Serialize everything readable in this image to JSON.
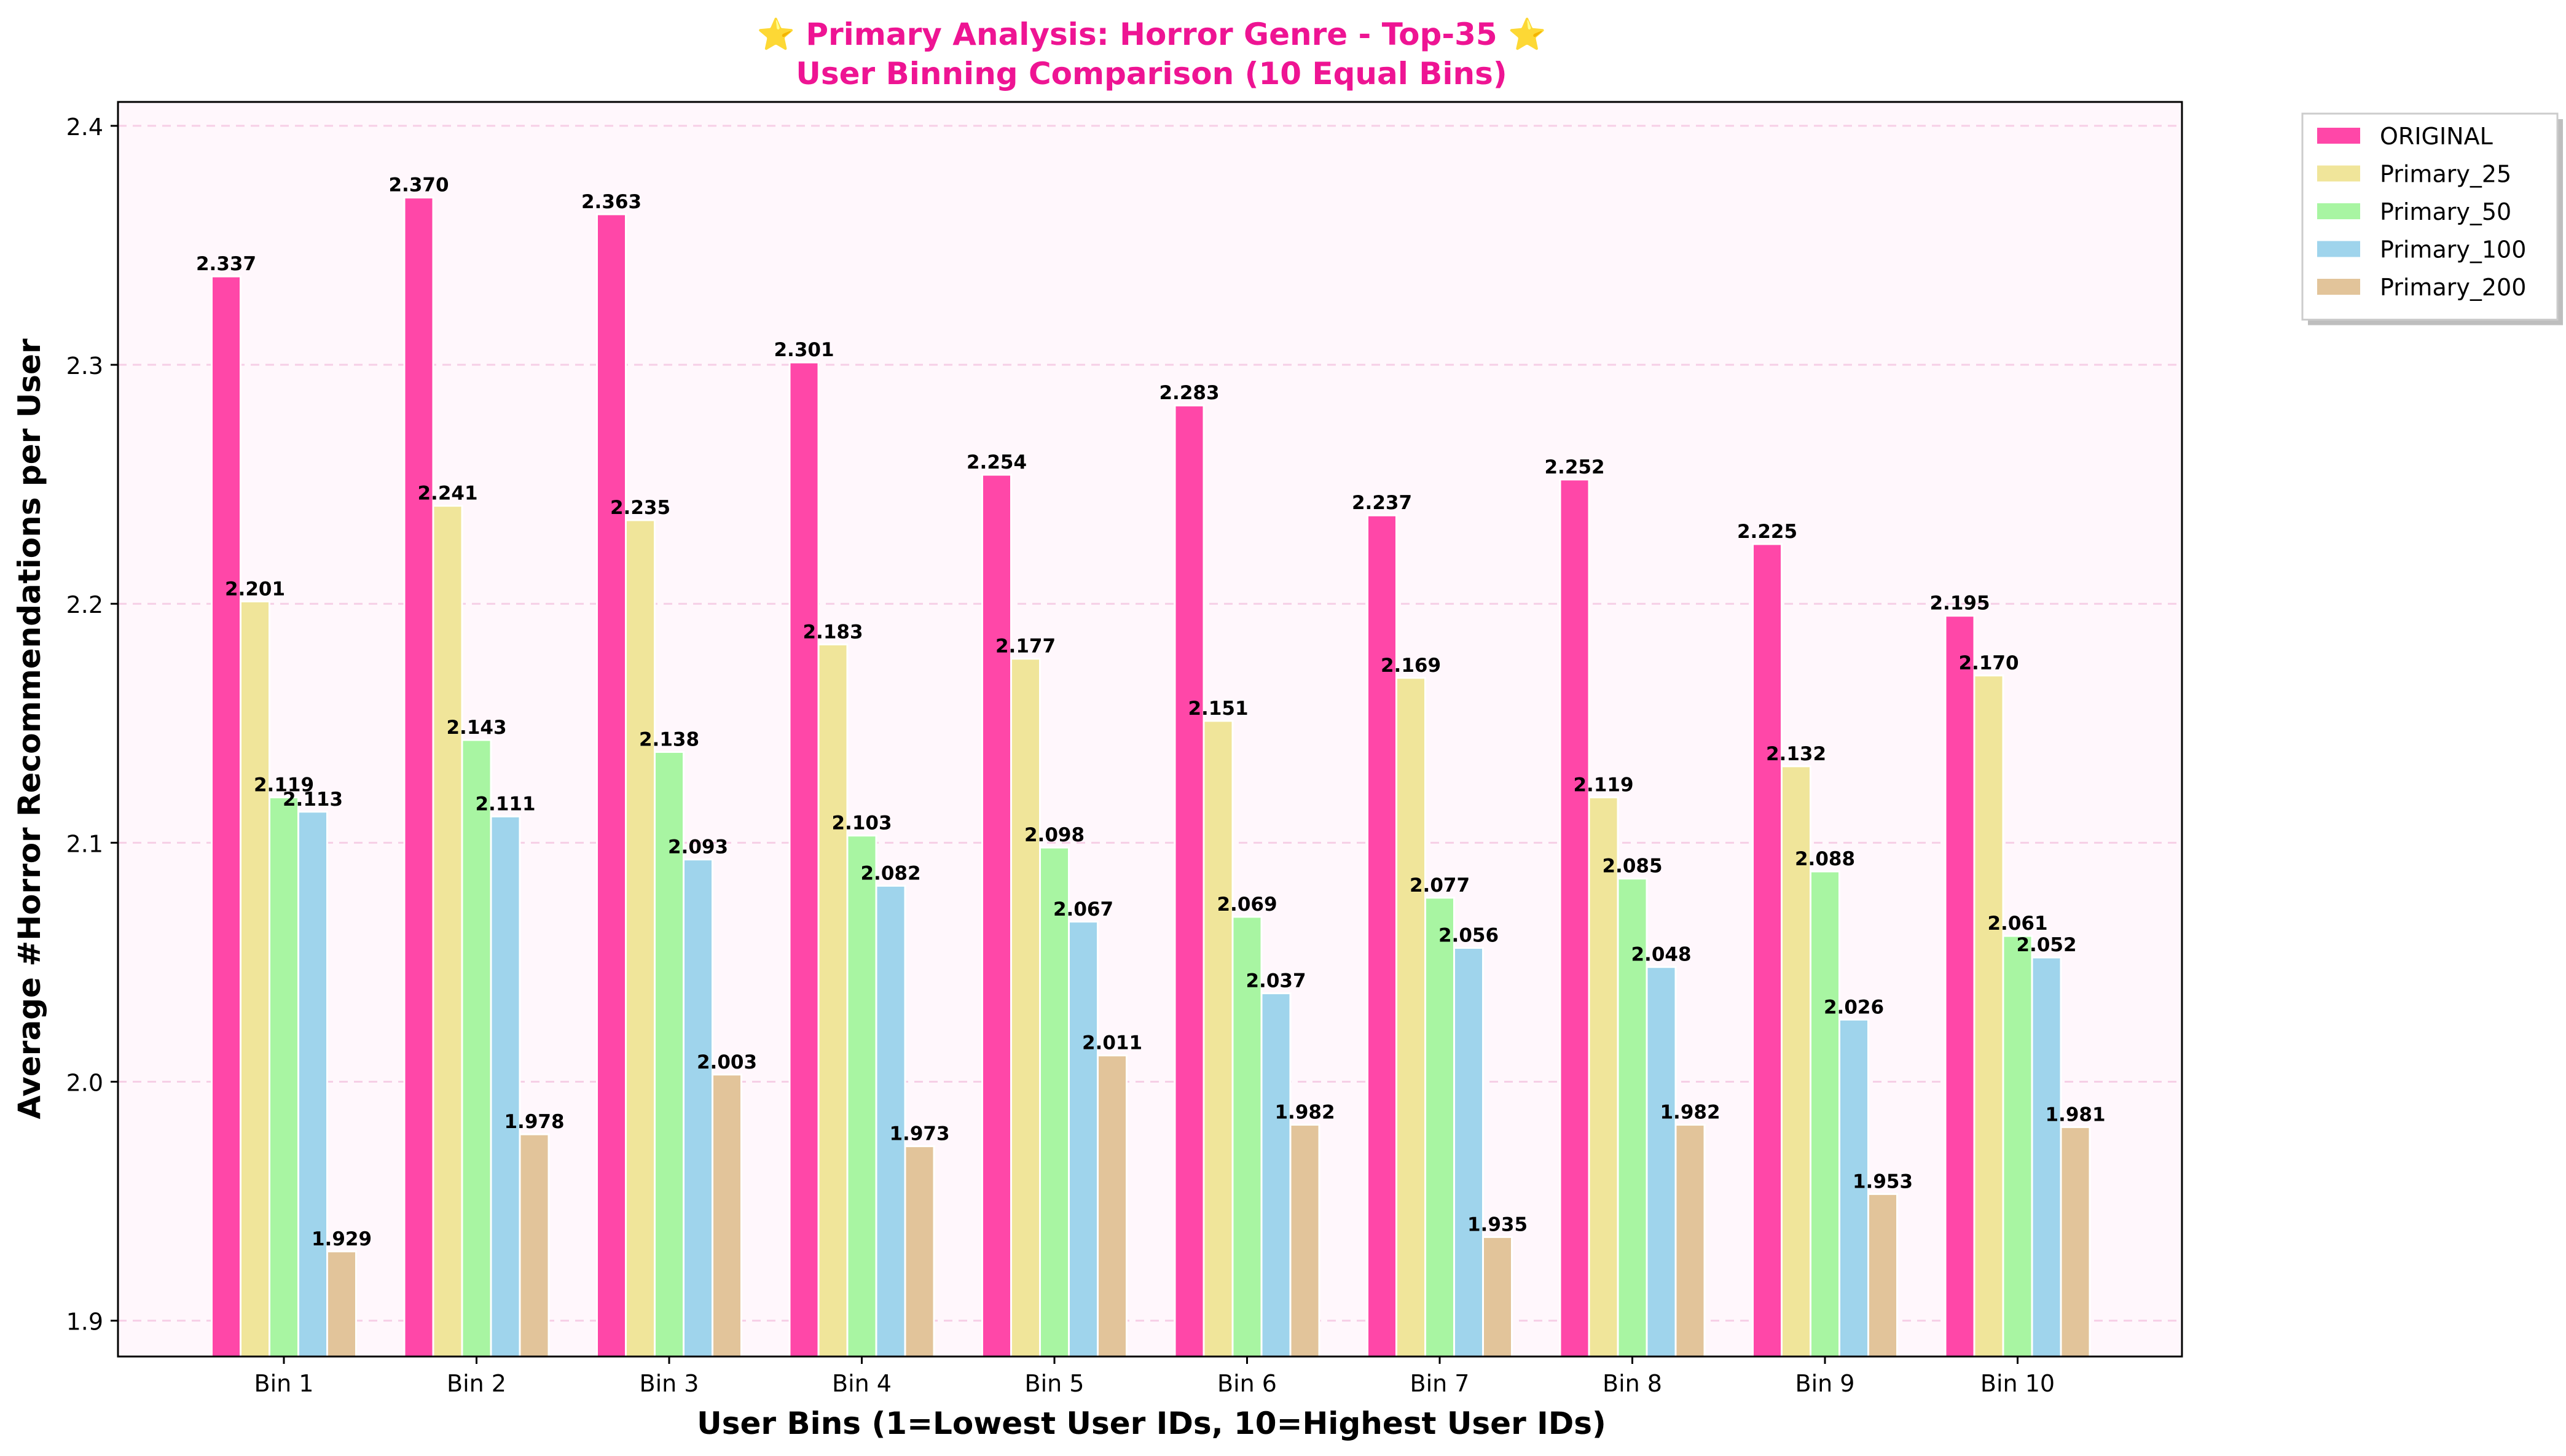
{
  "chart_data": {
    "type": "bar",
    "title_line1": "⭐ Primary Analysis: Horror Genre - Top-35 ⭐",
    "title_line2": "User Binning Comparison (10 Equal Bins)",
    "xlabel": "User Bins (1=Lowest User IDs, 10=Highest User IDs)",
    "ylabel": "Average #Horror Recommendations per User",
    "ylim": [
      1.885,
      2.41
    ],
    "yticks": [
      1.9,
      2.0,
      2.1,
      2.2,
      2.3,
      2.4
    ],
    "ytick_labels": [
      "1.9",
      "2.0",
      "2.1",
      "2.2",
      "2.3",
      "2.4"
    ],
    "grid": "horizontal dashed",
    "legend_placement": "outside top-right",
    "categories": [
      "Bin 1",
      "Bin 2",
      "Bin 3",
      "Bin 4",
      "Bin 5",
      "Bin 6",
      "Bin 7",
      "Bin 8",
      "Bin 9",
      "Bin 10"
    ],
    "series": [
      {
        "name": "ORIGINAL",
        "color": "#ff47a8",
        "values": [
          2.337,
          2.37,
          2.363,
          2.301,
          2.254,
          2.283,
          2.237,
          2.252,
          2.225,
          2.195
        ]
      },
      {
        "name": "Primary_25",
        "color": "#f0e59a",
        "values": [
          2.201,
          2.241,
          2.235,
          2.183,
          2.177,
          2.151,
          2.169,
          2.119,
          2.132,
          2.17
        ]
      },
      {
        "name": "Primary_50",
        "color": "#a8f5a2",
        "values": [
          2.119,
          2.143,
          2.138,
          2.103,
          2.098,
          2.069,
          2.077,
          2.085,
          2.088,
          2.061
        ]
      },
      {
        "name": "Primary_100",
        "color": "#9fd4ec",
        "values": [
          2.113,
          2.111,
          2.093,
          2.082,
          2.067,
          2.037,
          2.056,
          2.048,
          2.026,
          2.052
        ]
      },
      {
        "name": "Primary_200",
        "color": "#e2c49a",
        "values": [
          1.929,
          1.978,
          2.003,
          1.973,
          2.011,
          1.982,
          1.935,
          1.982,
          1.953,
          1.981
        ]
      }
    ],
    "plot_background": "#fff7fc",
    "grid_color": "#f6cfe6"
  }
}
